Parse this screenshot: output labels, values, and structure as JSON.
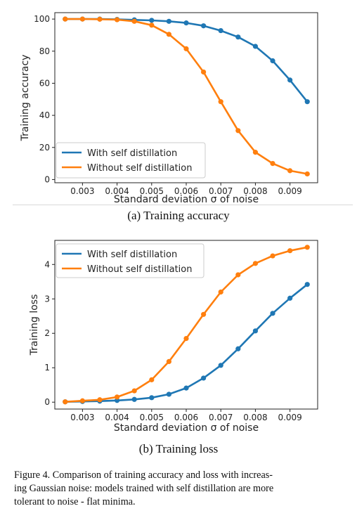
{
  "colors": {
    "series_a": "#1f77b4",
    "series_b": "#ff7f0e"
  },
  "captions": {
    "a": "(a) Training accuracy",
    "b": "(b) Training loss",
    "figure_lines": [
      "Figure 4. Comparison of training accuracy and loss with increas-",
      "ing Gaussian noise: models trained with self distillation are more",
      "tolerant to noise - flat minima."
    ]
  },
  "chart_data": [
    {
      "type": "line",
      "title": "",
      "xlabel": "Standard deviation σ of noise",
      "ylabel": "Training accuracy",
      "xlim": [
        0.0022,
        0.0098
      ],
      "ylim": [
        -2,
        104
      ],
      "xticks": [
        0.003,
        0.004,
        0.005,
        0.006,
        0.007,
        0.008,
        0.009
      ],
      "xtick_labels": [
        "0.003",
        "0.004",
        "0.005",
        "0.006",
        "0.007",
        "0.008",
        "0.009"
      ],
      "yticks": [
        0,
        20,
        40,
        60,
        80,
        100
      ],
      "ytick_labels": [
        "0",
        "20",
        "40",
        "60",
        "80",
        "100"
      ],
      "legend_position": "bottom-left",
      "x": [
        0.0025,
        0.003,
        0.0035,
        0.004,
        0.0045,
        0.005,
        0.0055,
        0.006,
        0.0065,
        0.007,
        0.0075,
        0.008,
        0.0085,
        0.009,
        0.0095
      ],
      "series": [
        {
          "name": "With self distillation",
          "color": "#1f77b4",
          "values": [
            100,
            100,
            100,
            99.8,
            99.5,
            99.2,
            98.6,
            97.6,
            95.8,
            92.8,
            88.8,
            83,
            74,
            62,
            48.5
          ]
        },
        {
          "name": "Without self distillation",
          "color": "#ff7f0e",
          "values": [
            100,
            100,
            99.9,
            99.6,
            98.6,
            96.2,
            90.5,
            81.5,
            67,
            48.5,
            30.5,
            17,
            10,
            5.5,
            3.5
          ]
        }
      ]
    },
    {
      "type": "line",
      "title": "",
      "xlabel": "Standard deviation σ of noise",
      "ylabel": "Training loss",
      "xlim": [
        0.0022,
        0.0098
      ],
      "ylim": [
        -0.2,
        4.7
      ],
      "xticks": [
        0.003,
        0.004,
        0.005,
        0.006,
        0.007,
        0.008,
        0.009
      ],
      "xtick_labels": [
        "0.003",
        "0.004",
        "0.005",
        "0.006",
        "0.007",
        "0.008",
        "0.009"
      ],
      "yticks": [
        0,
        1,
        2,
        3,
        4
      ],
      "ytick_labels": [
        "0",
        "1",
        "2",
        "3",
        "4"
      ],
      "legend_position": "top-left",
      "x": [
        0.0025,
        0.003,
        0.0035,
        0.004,
        0.0045,
        0.005,
        0.0055,
        0.006,
        0.0065,
        0.007,
        0.0075,
        0.008,
        0.0085,
        0.009,
        0.0095
      ],
      "series": [
        {
          "name": "With self distillation",
          "color": "#1f77b4",
          "values": [
            0.01,
            0.02,
            0.03,
            0.05,
            0.08,
            0.13,
            0.23,
            0.41,
            0.7,
            1.07,
            1.55,
            2.07,
            2.58,
            3.02,
            3.42
          ]
        },
        {
          "name": "Without self distillation",
          "color": "#ff7f0e",
          "values": [
            0.01,
            0.04,
            0.07,
            0.15,
            0.33,
            0.65,
            1.18,
            1.85,
            2.55,
            3.2,
            3.7,
            4.03,
            4.25,
            4.4,
            4.5
          ]
        }
      ]
    }
  ]
}
